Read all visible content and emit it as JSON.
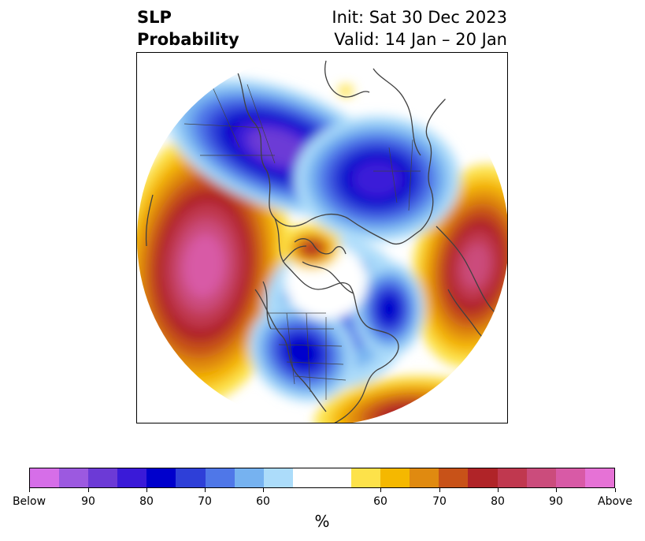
{
  "header": {
    "title_line1": "SLP",
    "title_line2": "Probability",
    "init": "Init: Sat 30 Dec 2023",
    "valid": "Valid: 14 Jan – 20 Jan"
  },
  "colorbar": {
    "colors": [
      "#d66ee8",
      "#9c59e0",
      "#6c3ad6",
      "#3a1ad8",
      "#0000cc",
      "#2e3fd8",
      "#4f77e8",
      "#76b2f0",
      "#acdcfa",
      "#ffffff",
      "#ffffff",
      "#fde24a",
      "#f5b800",
      "#e08a10",
      "#c85218",
      "#b02428",
      "#c0384f",
      "#cb4c7c",
      "#d85aa6",
      "#e672d6"
    ],
    "tick_labels": [
      "Below",
      "90",
      "80",
      "70",
      "60",
      "60",
      "70",
      "80",
      "90",
      "Above"
    ],
    "unit": "%"
  },
  "map": {
    "below_scale": [
      "#acdcfa",
      "#76b2f0",
      "#4f77e8",
      "#2e3fd8",
      "#0000cc",
      "#3a1ad8",
      "#6c3ad6"
    ],
    "above_scale": [
      "#fde24a",
      "#f5b800",
      "#e08a10",
      "#c85218",
      "#b02428",
      "#c0384f",
      "#cb4c7c",
      "#d85aa6"
    ],
    "coastline_color": "#404040"
  }
}
